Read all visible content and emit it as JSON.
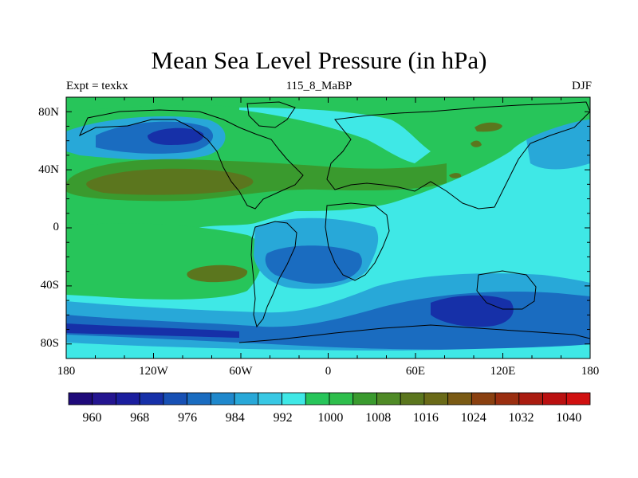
{
  "title": "Mean Sea Level Pressure (in hPa)",
  "subtitle_left": "Expt = texkx",
  "subtitle_center": "115_8_MaBP",
  "subtitle_right": "DJF",
  "lat_labels": [
    "80N",
    "40N",
    "0",
    "40S",
    "80S"
  ],
  "lon_labels": [
    "180",
    "120W",
    "60W",
    "0",
    "60E",
    "120E",
    "180"
  ],
  "colorbar": {
    "labels": [
      "960",
      "968",
      "976",
      "984",
      "992",
      "1000",
      "1008",
      "1016",
      "1024",
      "1032",
      "1040"
    ],
    "colors": [
      "#1f0a7a",
      "#241590",
      "#1b1e9e",
      "#1630a8",
      "#1750b4",
      "#1a6cc0",
      "#1f88cc",
      "#28a8d8",
      "#38c8e4",
      "#3fe8e6",
      "#27c55a",
      "#2ebe4c",
      "#3a9a2e",
      "#4f8a26",
      "#5b761e",
      "#6a6a18",
      "#7a5a14",
      "#8a4010",
      "#9a2e10",
      "#aa1c10",
      "#ba1010",
      "#d01010"
    ]
  },
  "map_colors": {
    "ocean_base": "#3fe8e6",
    "green_light": "#27c55a",
    "green_dark": "#3a9a2e",
    "olive": "#5b761e",
    "olive_dark": "#6a6a18",
    "blue_light": "#28a8d8",
    "blue_mid": "#1a6cc0",
    "blue_dark": "#1630a8",
    "blue_deep": "#1b1e9e"
  }
}
